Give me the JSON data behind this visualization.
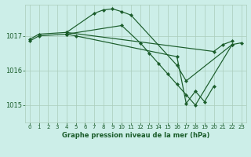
{
  "bg_color": "#cceee8",
  "grid_color": "#aaccbb",
  "line_color": "#1a5c2a",
  "marker_color": "#1a5c2a",
  "xlabel": "Graphe pression niveau de la mer (hPa)",
  "xlabel_color": "#1a5c2a",
  "yticks": [
    1015,
    1016,
    1017
  ],
  "xticks": [
    0,
    1,
    2,
    3,
    4,
    5,
    6,
    7,
    8,
    9,
    10,
    11,
    12,
    13,
    14,
    15,
    16,
    17,
    18,
    19,
    20,
    21,
    22,
    23
  ],
  "xlim": [
    -0.5,
    23.5
  ],
  "ylim": [
    1014.5,
    1017.9
  ],
  "series": [
    {
      "x": [
        0,
        1,
        4,
        7,
        8,
        9,
        10,
        11,
        16,
        17,
        22,
        23
      ],
      "y": [
        1016.9,
        1017.05,
        1017.1,
        1017.65,
        1017.75,
        1017.78,
        1017.7,
        1017.6,
        1016.15,
        1015.7,
        1016.75,
        1016.8
      ]
    },
    {
      "x": [
        0,
        1,
        4,
        10,
        12,
        13,
        14,
        15,
        16,
        17,
        18,
        22
      ],
      "y": [
        1016.85,
        1017.0,
        1017.05,
        1017.3,
        1016.8,
        1016.5,
        1016.2,
        1015.9,
        1015.6,
        1015.3,
        1015.0,
        1016.75
      ]
    },
    {
      "x": [
        4,
        5,
        16,
        17,
        18,
        19,
        20
      ],
      "y": [
        1017.05,
        1017.0,
        1016.4,
        1015.05,
        1015.4,
        1015.1,
        1015.55
      ]
    },
    {
      "x": [
        4,
        20,
        21,
        22
      ],
      "y": [
        1017.1,
        1016.55,
        1016.75,
        1016.85
      ]
    }
  ]
}
